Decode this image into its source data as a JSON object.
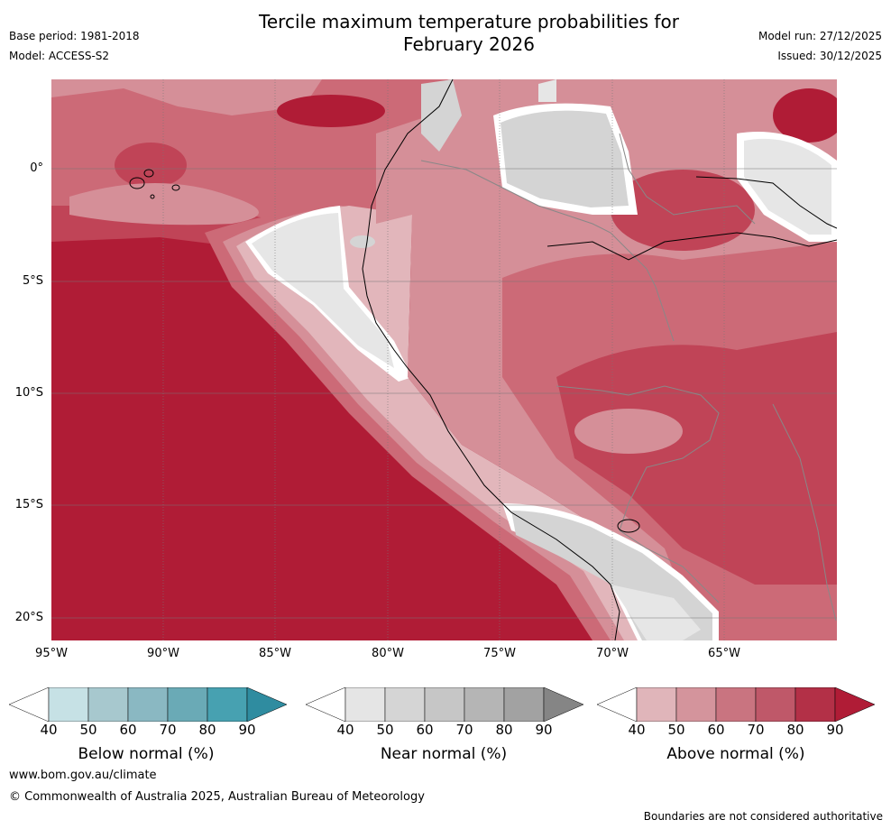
{
  "header": {
    "title_line1": "Tercile maximum temperature probabilities for",
    "title_line2": "February 2026",
    "base_period": "Base period: 1981-2018",
    "model": "Model: ACCESS-S2",
    "model_run": "Model run: 27/12/2025",
    "issued": "Issued: 30/12/2025"
  },
  "map": {
    "region": "Western South America and eastern Pacific",
    "lat_labels": [
      "0°",
      "5°S",
      "10°S",
      "15°S",
      "20°S"
    ],
    "lon_labels": [
      "95°W",
      "90°W",
      "85°W",
      "80°W",
      "75°W",
      "70°W",
      "65°W"
    ],
    "colors": {
      "above_90": "#b01c36",
      "above_80": "#c04457",
      "above_70": "#cc6a77",
      "above_60": "#d58f98",
      "above_50": "#e2b6bb",
      "near_40": "#e6e6e6",
      "near_50": "#d4d4d4",
      "near_60": "#c8c8c8"
    }
  },
  "legend": {
    "below": {
      "title": "Below normal (%)",
      "ticks": [
        "40",
        "50",
        "60",
        "70",
        "80",
        "90"
      ],
      "colors": [
        "#ffffff",
        "#c6e1e5",
        "#a7c8ce",
        "#8ab8c2",
        "#6aaab6",
        "#47a1b1",
        "#2f8ca0"
      ]
    },
    "near": {
      "title": "Near normal (%)",
      "ticks": [
        "40",
        "50",
        "60",
        "70",
        "80",
        "90"
      ],
      "colors": [
        "#ffffff",
        "#e5e5e5",
        "#d5d5d5",
        "#c6c6c6",
        "#b5b5b5",
        "#a2a2a2",
        "#858585"
      ]
    },
    "above": {
      "title": "Above normal (%)",
      "ticks": [
        "40",
        "50",
        "60",
        "70",
        "80",
        "90"
      ],
      "colors": [
        "#ffffff",
        "#e0b5ba",
        "#d4949c",
        "#c97480",
        "#bf5869",
        "#b33047",
        "#b01c36"
      ]
    }
  },
  "footer": {
    "website": "www.bom.gov.au/climate",
    "copyright": "© Commonwealth of Australia 2025, Australian Bureau of Meteorology",
    "disclaimer": "Boundaries are not considered authoritative"
  }
}
